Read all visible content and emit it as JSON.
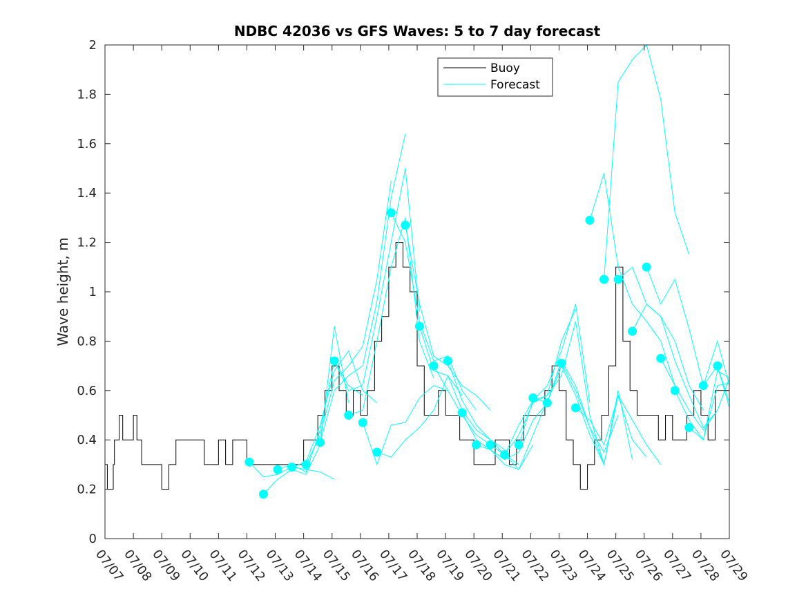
{
  "chart_data": {
    "type": "line",
    "title": "NDBC 42036 vs GFS Waves: 5 to 7 day forecast",
    "ylabel": "Wave height, m",
    "xlabel": "",
    "x_start": "07/07",
    "x_end": "07/29",
    "xlim": [
      "07/07",
      "07/29"
    ],
    "ylim": [
      0,
      2
    ],
    "x_ticks": [
      "07/07",
      "07/08",
      "07/09",
      "07/10",
      "07/11",
      "07/12",
      "07/13",
      "07/14",
      "07/15",
      "07/16",
      "07/17",
      "07/18",
      "07/19",
      "07/20",
      "07/21",
      "07/22",
      "07/23",
      "07/24",
      "07/25",
      "07/26",
      "07/27",
      "07/28",
      "07/29"
    ],
    "y_ticks": [
      0,
      0.2,
      0.4,
      0.6,
      0.8,
      1,
      1.2,
      1.4,
      1.6,
      1.8,
      2
    ],
    "y_tick_labels": [
      "0",
      "0.2",
      "0.4",
      "0.6",
      "0.8",
      "1",
      "1.2",
      "1.4",
      "1.6",
      "1.8",
      "2"
    ],
    "grid": false,
    "legend": {
      "position": "top-center",
      "entries": [
        "Buoy",
        "Forecast"
      ]
    },
    "colors": {
      "buoy": "#000000",
      "forecast": "#00ffff",
      "axes": "#262626"
    },
    "buoy": {
      "x": [
        "07/07 00:00",
        "07/07 02:00",
        "07/07 07:00",
        "07/07 08:00",
        "07/07 10:00",
        "07/07 12:00",
        "07/07 15:00",
        "07/07 18:00",
        "07/08 00:00",
        "07/08 03:00",
        "07/08 05:00",
        "07/08 07:00",
        "07/08 12:00",
        "07/08 14:00",
        "07/08 18:00",
        "07/09 00:00",
        "07/09 06:00",
        "07/09 12:00",
        "07/10 00:00",
        "07/10 06:00",
        "07/10 12:00",
        "07/10 18:00",
        "07/11 00:00",
        "07/11 06:00",
        "07/11 12:00",
        "07/11 18:00",
        "07/12 00:00",
        "07/12 06:00",
        "07/12 12:00",
        "07/12 18:00",
        "07/13 00:00",
        "07/13 06:00",
        "07/13 12:00",
        "07/13 18:00",
        "07/14 00:00",
        "07/14 06:00",
        "07/14 12:00",
        "07/14 18:00",
        "07/15 00:00",
        "07/15 06:00",
        "07/15 12:00",
        "07/15 18:00",
        "07/16 00:00",
        "07/16 06:00",
        "07/16 12:00",
        "07/16 18:00",
        "07/17 00:00",
        "07/17 06:00",
        "07/17 12:00",
        "07/17 18:00",
        "07/18 00:00",
        "07/18 06:00",
        "07/18 12:00",
        "07/18 18:00",
        "07/19 00:00",
        "07/19 06:00",
        "07/19 12:00",
        "07/19 18:00",
        "07/20 00:00",
        "07/20 06:00",
        "07/20 12:00",
        "07/20 18:00",
        "07/21 00:00",
        "07/21 06:00",
        "07/21 12:00",
        "07/21 18:00",
        "07/22 00:00",
        "07/22 06:00",
        "07/22 12:00",
        "07/22 18:00",
        "07/23 00:00",
        "07/23 06:00",
        "07/23 12:00",
        "07/23 18:00",
        "07/24 00:00",
        "07/24 06:00",
        "07/24 12:00",
        "07/24 18:00",
        "07/25 00:00",
        "07/25 06:00",
        "07/25 12:00",
        "07/25 18:00",
        "07/26 00:00",
        "07/26 06:00",
        "07/26 12:00",
        "07/26 18:00",
        "07/27 00:00",
        "07/27 06:00",
        "07/27 12:00",
        "07/27 18:00",
        "07/28 00:00",
        "07/28 06:00",
        "07/28 12:00",
        "07/28 18:00",
        "07/29 00:00"
      ],
      "y": [
        0.3,
        0.2,
        0.3,
        0.4,
        0.4,
        0.5,
        0.4,
        0.4,
        0.5,
        0.4,
        0.4,
        0.3,
        0.3,
        0.3,
        0.3,
        0.2,
        0.3,
        0.4,
        0.4,
        0.4,
        0.3,
        0.3,
        0.4,
        0.3,
        0.4,
        0.4,
        0.3,
        0.3,
        0.3,
        0.3,
        0.3,
        0.3,
        0.3,
        0.3,
        0.4,
        0.4,
        0.5,
        0.6,
        0.7,
        0.6,
        0.5,
        0.6,
        0.5,
        0.6,
        0.8,
        0.9,
        1.1,
        1.2,
        1.1,
        1.0,
        0.7,
        0.5,
        0.5,
        0.6,
        0.5,
        0.5,
        0.4,
        0.4,
        0.3,
        0.3,
        0.3,
        0.4,
        0.4,
        0.3,
        0.4,
        0.5,
        0.5,
        0.5,
        0.6,
        0.7,
        0.6,
        0.4,
        0.3,
        0.2,
        0.3,
        0.4,
        0.5,
        0.7,
        1.1,
        0.8,
        0.6,
        0.5,
        0.5,
        0.5,
        0.4,
        0.5,
        0.4,
        0.4,
        0.5,
        0.6,
        0.5,
        0.4,
        0.6,
        0.6,
        0.6
      ]
    },
    "forecast_points": {
      "x": [
        "07/12 02:00",
        "07/12 14:00",
        "07/13 02:00",
        "07/13 14:00",
        "07/14 02:00",
        "07/14 14:00",
        "07/15 02:00",
        "07/15 14:00",
        "07/16 02:00",
        "07/16 14:00",
        "07/17 02:00",
        "07/17 14:00",
        "07/18 02:00",
        "07/18 14:00",
        "07/19 02:00",
        "07/19 14:00",
        "07/20 02:00",
        "07/20 14:00",
        "07/21 02:00",
        "07/21 14:00",
        "07/22 02:00",
        "07/22 14:00",
        "07/23 02:00",
        "07/23 14:00",
        "07/24 02:00",
        "07/24 14:00",
        "07/25 02:00",
        "07/25 14:00",
        "07/26 02:00",
        "07/26 14:00",
        "07/27 02:00",
        "07/27 14:00",
        "07/28 02:00",
        "07/28 14:00"
      ],
      "y": [
        0.31,
        0.18,
        0.28,
        0.29,
        0.3,
        0.39,
        0.72,
        0.5,
        0.47,
        0.35,
        1.32,
        1.27,
        0.86,
        0.7,
        0.72,
        0.51,
        0.38,
        0.38,
        0.34,
        0.38,
        0.57,
        0.55,
        0.71,
        0.53,
        1.29,
        1.05,
        1.05,
        0.84,
        1.1,
        0.73,
        0.6,
        0.45,
        0.62,
        0.7
      ]
    },
    "forecast_runs": [
      {
        "x": [
          "07/12 02:00",
          "07/12 14:00",
          "07/13 02:00",
          "07/13 14:00",
          "07/14 02:00",
          "07/14 14:00",
          "07/15 02:00"
        ],
        "y": [
          0.31,
          0.25,
          0.26,
          0.29,
          0.28,
          0.27,
          0.24
        ]
      },
      {
        "x": [
          "07/12 14:00",
          "07/13 02:00",
          "07/13 14:00",
          "07/14 02:00",
          "07/14 14:00",
          "07/15 02:00",
          "07/15 14:00"
        ],
        "y": [
          0.18,
          0.24,
          0.28,
          0.26,
          0.38,
          0.86,
          0.55
        ]
      },
      {
        "x": [
          "07/13 02:00",
          "07/13 14:00",
          "07/14 02:00",
          "07/14 14:00",
          "07/15 02:00",
          "07/15 14:00",
          "07/16 02:00"
        ],
        "y": [
          0.28,
          0.3,
          0.27,
          0.44,
          0.72,
          0.62,
          0.58
        ]
      },
      {
        "x": [
          "07/13 14:00",
          "07/14 02:00",
          "07/14 14:00",
          "07/15 02:00",
          "07/15 14:00",
          "07/16 02:00",
          "07/16 14:00"
        ],
        "y": [
          0.29,
          0.31,
          0.46,
          0.68,
          0.76,
          0.6,
          0.55
        ]
      },
      {
        "x": [
          "07/14 02:00",
          "07/14 14:00",
          "07/15 02:00",
          "07/15 14:00",
          "07/16 02:00",
          "07/16 14:00",
          "07/17 02:00"
        ],
        "y": [
          0.3,
          0.42,
          0.64,
          0.7,
          0.78,
          1.05,
          1.45
        ]
      },
      {
        "x": [
          "07/14 14:00",
          "07/15 02:00",
          "07/15 14:00",
          "07/16 02:00",
          "07/16 14:00",
          "07/17 02:00",
          "07/17 14:00"
        ],
        "y": [
          0.39,
          0.6,
          0.66,
          0.7,
          0.96,
          1.38,
          1.64
        ]
      },
      {
        "x": [
          "07/15 02:00",
          "07/15 14:00",
          "07/16 02:00",
          "07/16 14:00",
          "07/17 02:00",
          "07/17 14:00",
          "07/18 02:00"
        ],
        "y": [
          0.72,
          0.6,
          0.62,
          0.9,
          1.2,
          1.5,
          0.92
        ]
      },
      {
        "x": [
          "07/15 14:00",
          "07/16 02:00",
          "07/16 14:00",
          "07/17 02:00",
          "07/17 14:00",
          "07/18 02:00",
          "07/18 14:00"
        ],
        "y": [
          0.5,
          0.52,
          0.8,
          1.1,
          1.3,
          0.8,
          0.65
        ]
      },
      {
        "x": [
          "07/16 02:00",
          "07/16 14:00",
          "07/17 02:00",
          "07/17 14:00",
          "07/18 02:00",
          "07/18 14:00",
          "07/19 02:00"
        ],
        "y": [
          0.47,
          0.3,
          0.46,
          0.47,
          0.57,
          0.62,
          0.6
        ]
      },
      {
        "x": [
          "07/16 14:00",
          "07/17 02:00",
          "07/17 14:00",
          "07/18 02:00",
          "07/18 14:00",
          "07/19 02:00",
          "07/19 14:00"
        ],
        "y": [
          0.35,
          0.33,
          0.4,
          0.45,
          0.52,
          0.66,
          0.58
        ]
      },
      {
        "x": [
          "07/17 02:00",
          "07/17 14:00",
          "07/18 02:00",
          "07/18 14:00",
          "07/19 02:00",
          "07/19 14:00",
          "07/20 02:00"
        ],
        "y": [
          1.32,
          1.2,
          0.88,
          0.72,
          0.74,
          0.6,
          0.52
        ]
      },
      {
        "x": [
          "07/17 14:00",
          "07/18 02:00",
          "07/18 14:00",
          "07/19 02:00",
          "07/19 14:00",
          "07/20 02:00",
          "07/20 14:00"
        ],
        "y": [
          1.27,
          0.95,
          0.74,
          0.7,
          0.62,
          0.58,
          0.52
        ]
      },
      {
        "x": [
          "07/18 02:00",
          "07/18 14:00",
          "07/19 02:00",
          "07/19 14:00",
          "07/20 02:00",
          "07/20 14:00",
          "07/21 02:00"
        ],
        "y": [
          0.86,
          0.68,
          0.66,
          0.52,
          0.44,
          0.4,
          0.36
        ]
      },
      {
        "x": [
          "07/18 14:00",
          "07/19 02:00",
          "07/19 14:00",
          "07/20 02:00",
          "07/20 14:00",
          "07/21 02:00",
          "07/21 14:00"
        ],
        "y": [
          0.7,
          0.6,
          0.5,
          0.42,
          0.38,
          0.34,
          0.3
        ]
      },
      {
        "x": [
          "07/19 02:00",
          "07/19 14:00",
          "07/20 02:00",
          "07/20 14:00",
          "07/21 02:00",
          "07/21 14:00",
          "07/22 02:00"
        ],
        "y": [
          0.72,
          0.56,
          0.46,
          0.4,
          0.34,
          0.28,
          0.38
        ]
      },
      {
        "x": [
          "07/19 14:00",
          "07/20 02:00",
          "07/20 14:00",
          "07/21 02:00",
          "07/21 14:00",
          "07/22 02:00",
          "07/22 14:00"
        ],
        "y": [
          0.51,
          0.4,
          0.36,
          0.3,
          0.28,
          0.42,
          0.56
        ]
      },
      {
        "x": [
          "07/20 02:00",
          "07/20 14:00",
          "07/21 02:00",
          "07/21 14:00",
          "07/22 02:00",
          "07/22 14:00",
          "07/23 02:00"
        ],
        "y": [
          0.38,
          0.36,
          0.32,
          0.35,
          0.48,
          0.55,
          0.72
        ]
      },
      {
        "x": [
          "07/20 14:00",
          "07/21 02:00",
          "07/21 14:00",
          "07/22 02:00",
          "07/22 14:00",
          "07/23 02:00",
          "07/23 14:00"
        ],
        "y": [
          0.38,
          0.34,
          0.42,
          0.55,
          0.58,
          0.8,
          0.93
        ]
      },
      {
        "x": [
          "07/21 02:00",
          "07/21 14:00",
          "07/22 02:00",
          "07/22 14:00",
          "07/23 02:00",
          "07/23 14:00",
          "07/24 02:00"
        ],
        "y": [
          0.34,
          0.46,
          0.56,
          0.62,
          0.76,
          0.95,
          0.55
        ]
      },
      {
        "x": [
          "07/21 14:00",
          "07/22 02:00",
          "07/22 14:00",
          "07/23 02:00",
          "07/23 14:00",
          "07/24 02:00",
          "07/24 14:00"
        ],
        "y": [
          0.38,
          0.56,
          0.58,
          0.66,
          0.88,
          0.5,
          0.3
        ]
      },
      {
        "x": [
          "07/22 02:00",
          "07/22 14:00",
          "07/23 02:00",
          "07/23 14:00",
          "07/24 02:00",
          "07/24 14:00",
          "07/25 02:00"
        ],
        "y": [
          0.57,
          0.55,
          0.72,
          0.62,
          0.45,
          0.35,
          0.5
        ]
      },
      {
        "x": [
          "07/22 14:00",
          "07/23 02:00",
          "07/23 14:00",
          "07/24 02:00",
          "07/24 14:00",
          "07/25 02:00",
          "07/25 14:00"
        ],
        "y": [
          0.55,
          0.7,
          0.58,
          0.42,
          0.3,
          0.6,
          0.32
        ]
      },
      {
        "x": [
          "07/23 02:00",
          "07/23 14:00",
          "07/24 02:00",
          "07/24 14:00",
          "07/25 02:00",
          "07/25 14:00",
          "07/26 02:00"
        ],
        "y": [
          0.71,
          0.6,
          0.45,
          0.3,
          0.58,
          0.4,
          0.33
        ]
      },
      {
        "x": [
          "07/23 14:00",
          "07/24 02:00",
          "07/24 14:00",
          "07/25 02:00",
          "07/25 14:00",
          "07/26 02:00",
          "07/26 14:00"
        ],
        "y": [
          0.53,
          0.48,
          0.38,
          0.58,
          0.48,
          0.38,
          0.3
        ]
      },
      {
        "x": [
          "07/24 02:00",
          "07/24 14:00",
          "07/25 02:00",
          "07/25 14:00",
          "07/26 02:00",
          "07/26 14:00",
          "07/27 02:00"
        ],
        "y": [
          1.29,
          1.48,
          1.1,
          0.95,
          0.88,
          0.8,
          0.62
        ]
      },
      {
        "x": [
          "07/24 14:00",
          "07/25 02:00",
          "07/25 14:00",
          "07/26 02:00",
          "07/26 14:00",
          "07/27 02:00",
          "07/27 14:00"
        ],
        "y": [
          1.05,
          1.85,
          1.94,
          2.0,
          1.78,
          1.32,
          1.15
        ]
      },
      {
        "x": [
          "07/25 02:00",
          "07/25 14:00",
          "07/26 02:00",
          "07/26 14:00",
          "07/27 02:00",
          "07/27 14:00",
          "07/28 02:00"
        ],
        "y": [
          1.05,
          1.1,
          0.95,
          0.9,
          0.8,
          0.62,
          0.52
        ]
      },
      {
        "x": [
          "07/25 14:00",
          "07/26 02:00",
          "07/26 14:00",
          "07/27 02:00",
          "07/27 14:00",
          "07/28 02:00",
          "07/28 14:00"
        ],
        "y": [
          0.84,
          0.95,
          0.9,
          0.72,
          0.58,
          0.45,
          0.52
        ]
      },
      {
        "x": [
          "07/26 02:00",
          "07/26 14:00",
          "07/27 02:00",
          "07/27 14:00",
          "07/28 02:00",
          "07/28 14:00",
          "07/29 00:00"
        ],
        "y": [
          1.1,
          0.95,
          1.05,
          0.85,
          0.62,
          0.7,
          0.53
        ]
      },
      {
        "x": [
          "07/26 14:00",
          "07/27 02:00",
          "07/27 14:00",
          "07/28 02:00",
          "07/28 14:00",
          "07/29 00:00"
        ],
        "y": [
          0.73,
          0.62,
          0.52,
          0.44,
          0.52,
          0.65
        ]
      },
      {
        "x": [
          "07/27 02:00",
          "07/27 14:00",
          "07/28 02:00",
          "07/28 14:00",
          "07/29 00:00"
        ],
        "y": [
          0.6,
          0.48,
          0.4,
          0.62,
          0.63
        ]
      },
      {
        "x": [
          "07/27 14:00",
          "07/28 02:00",
          "07/28 14:00",
          "07/29 00:00"
        ],
        "y": [
          0.45,
          0.4,
          0.68,
          0.65
        ]
      },
      {
        "x": [
          "07/28 02:00",
          "07/28 14:00",
          "07/29 00:00"
        ],
        "y": [
          0.62,
          0.8,
          0.62
        ]
      },
      {
        "x": [
          "07/28 14:00",
          "07/29 00:00"
        ],
        "y": [
          0.7,
          0.55
        ]
      }
    ]
  }
}
